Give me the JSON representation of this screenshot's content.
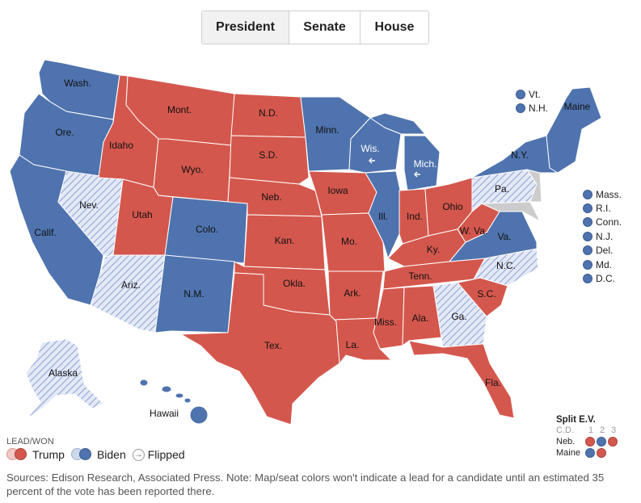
{
  "tabs": [
    {
      "label": "President",
      "active": true
    },
    {
      "label": "Senate",
      "active": false
    },
    {
      "label": "House",
      "active": false
    }
  ],
  "colors": {
    "trump_won": "#d4574d",
    "biden_won": "#4f73ae",
    "trump_lead": "#f2c9c4",
    "biden_lead": "#cfd9ec",
    "biden_lead_stripe": "#8c9fd6",
    "trump_lead_stripe": "#e6b7a5"
  },
  "states": [
    {
      "abbr": "Wash.",
      "result": "biden_won"
    },
    {
      "abbr": "Ore.",
      "result": "biden_won"
    },
    {
      "abbr": "Calif.",
      "result": "biden_won"
    },
    {
      "abbr": "Nev.",
      "result": "biden_lead"
    },
    {
      "abbr": "Idaho",
      "result": "trump_won"
    },
    {
      "abbr": "Mont.",
      "result": "trump_won"
    },
    {
      "abbr": "Wyo.",
      "result": "trump_won"
    },
    {
      "abbr": "Utah",
      "result": "trump_won"
    },
    {
      "abbr": "Ariz.",
      "result": "biden_lead"
    },
    {
      "abbr": "Colo.",
      "result": "biden_won"
    },
    {
      "abbr": "N.M.",
      "result": "biden_won"
    },
    {
      "abbr": "N.D.",
      "result": "trump_won"
    },
    {
      "abbr": "S.D.",
      "result": "trump_won"
    },
    {
      "abbr": "Neb.",
      "result": "trump_won"
    },
    {
      "abbr": "Kan.",
      "result": "trump_won"
    },
    {
      "abbr": "Okla.",
      "result": "trump_won"
    },
    {
      "abbr": "Tex.",
      "result": "trump_won"
    },
    {
      "abbr": "Minn.",
      "result": "biden_won"
    },
    {
      "abbr": "Iowa",
      "result": "trump_won"
    },
    {
      "abbr": "Mo.",
      "result": "trump_won"
    },
    {
      "abbr": "Ark.",
      "result": "trump_won"
    },
    {
      "abbr": "La.",
      "result": "trump_won"
    },
    {
      "abbr": "Wis.",
      "result": "biden_won",
      "flipped": true
    },
    {
      "abbr": "Ill.",
      "result": "biden_won"
    },
    {
      "abbr": "Mich.",
      "result": "biden_won",
      "flipped": true
    },
    {
      "abbr": "Ind.",
      "result": "trump_won"
    },
    {
      "abbr": "Ohio",
      "result": "trump_won"
    },
    {
      "abbr": "Ky.",
      "result": "trump_won"
    },
    {
      "abbr": "Tenn.",
      "result": "trump_won"
    },
    {
      "abbr": "Miss.",
      "result": "trump_won"
    },
    {
      "abbr": "Ala.",
      "result": "trump_won"
    },
    {
      "abbr": "Ga.",
      "result": "biden_lead"
    },
    {
      "abbr": "Fla.",
      "result": "trump_won"
    },
    {
      "abbr": "S.C.",
      "result": "trump_won"
    },
    {
      "abbr": "N.C.",
      "result": "trump_lead"
    },
    {
      "abbr": "Va.",
      "result": "biden_won"
    },
    {
      "abbr": "W. Va.",
      "result": "trump_won"
    },
    {
      "abbr": "Pa.",
      "result": "biden_lead"
    },
    {
      "abbr": "N.Y.",
      "result": "biden_won"
    },
    {
      "abbr": "Maine",
      "result": "biden_won"
    },
    {
      "abbr": "Alaska",
      "result": "biden_lead"
    },
    {
      "abbr": "Hawaii",
      "result": "biden_won"
    }
  ],
  "northeast_small": [
    {
      "abbr": "Vt.",
      "result": "biden_won"
    },
    {
      "abbr": "N.H.",
      "result": "biden_won"
    }
  ],
  "small_states": [
    {
      "abbr": "Mass.",
      "result": "biden_won"
    },
    {
      "abbr": "R.I.",
      "result": "biden_won"
    },
    {
      "abbr": "Conn.",
      "result": "biden_won"
    },
    {
      "abbr": "N.J.",
      "result": "biden_won"
    },
    {
      "abbr": "Del.",
      "result": "biden_won"
    },
    {
      "abbr": "Md.",
      "result": "biden_won"
    },
    {
      "abbr": "D.C.",
      "result": "biden_won"
    }
  ],
  "split_ev": {
    "title": "Split E.V.",
    "cd_label": "C.D.",
    "districts": [
      "1",
      "2",
      "3"
    ],
    "rows": [
      {
        "state": "Neb.",
        "results": [
          "trump_won",
          "biden_won",
          "trump_won"
        ]
      },
      {
        "state": "Maine",
        "results": [
          "biden_won",
          "trump_won"
        ]
      }
    ]
  },
  "legend": {
    "heading": "LEAD/WON",
    "trump": "Trump",
    "biden": "Biden",
    "flipped": "Flipped"
  },
  "sources": "Sources: Edison Research, Associated Press. Note: Map/seat colors won't indicate a lead for a candidate until an estimated 35 percent of the vote has been reported there."
}
